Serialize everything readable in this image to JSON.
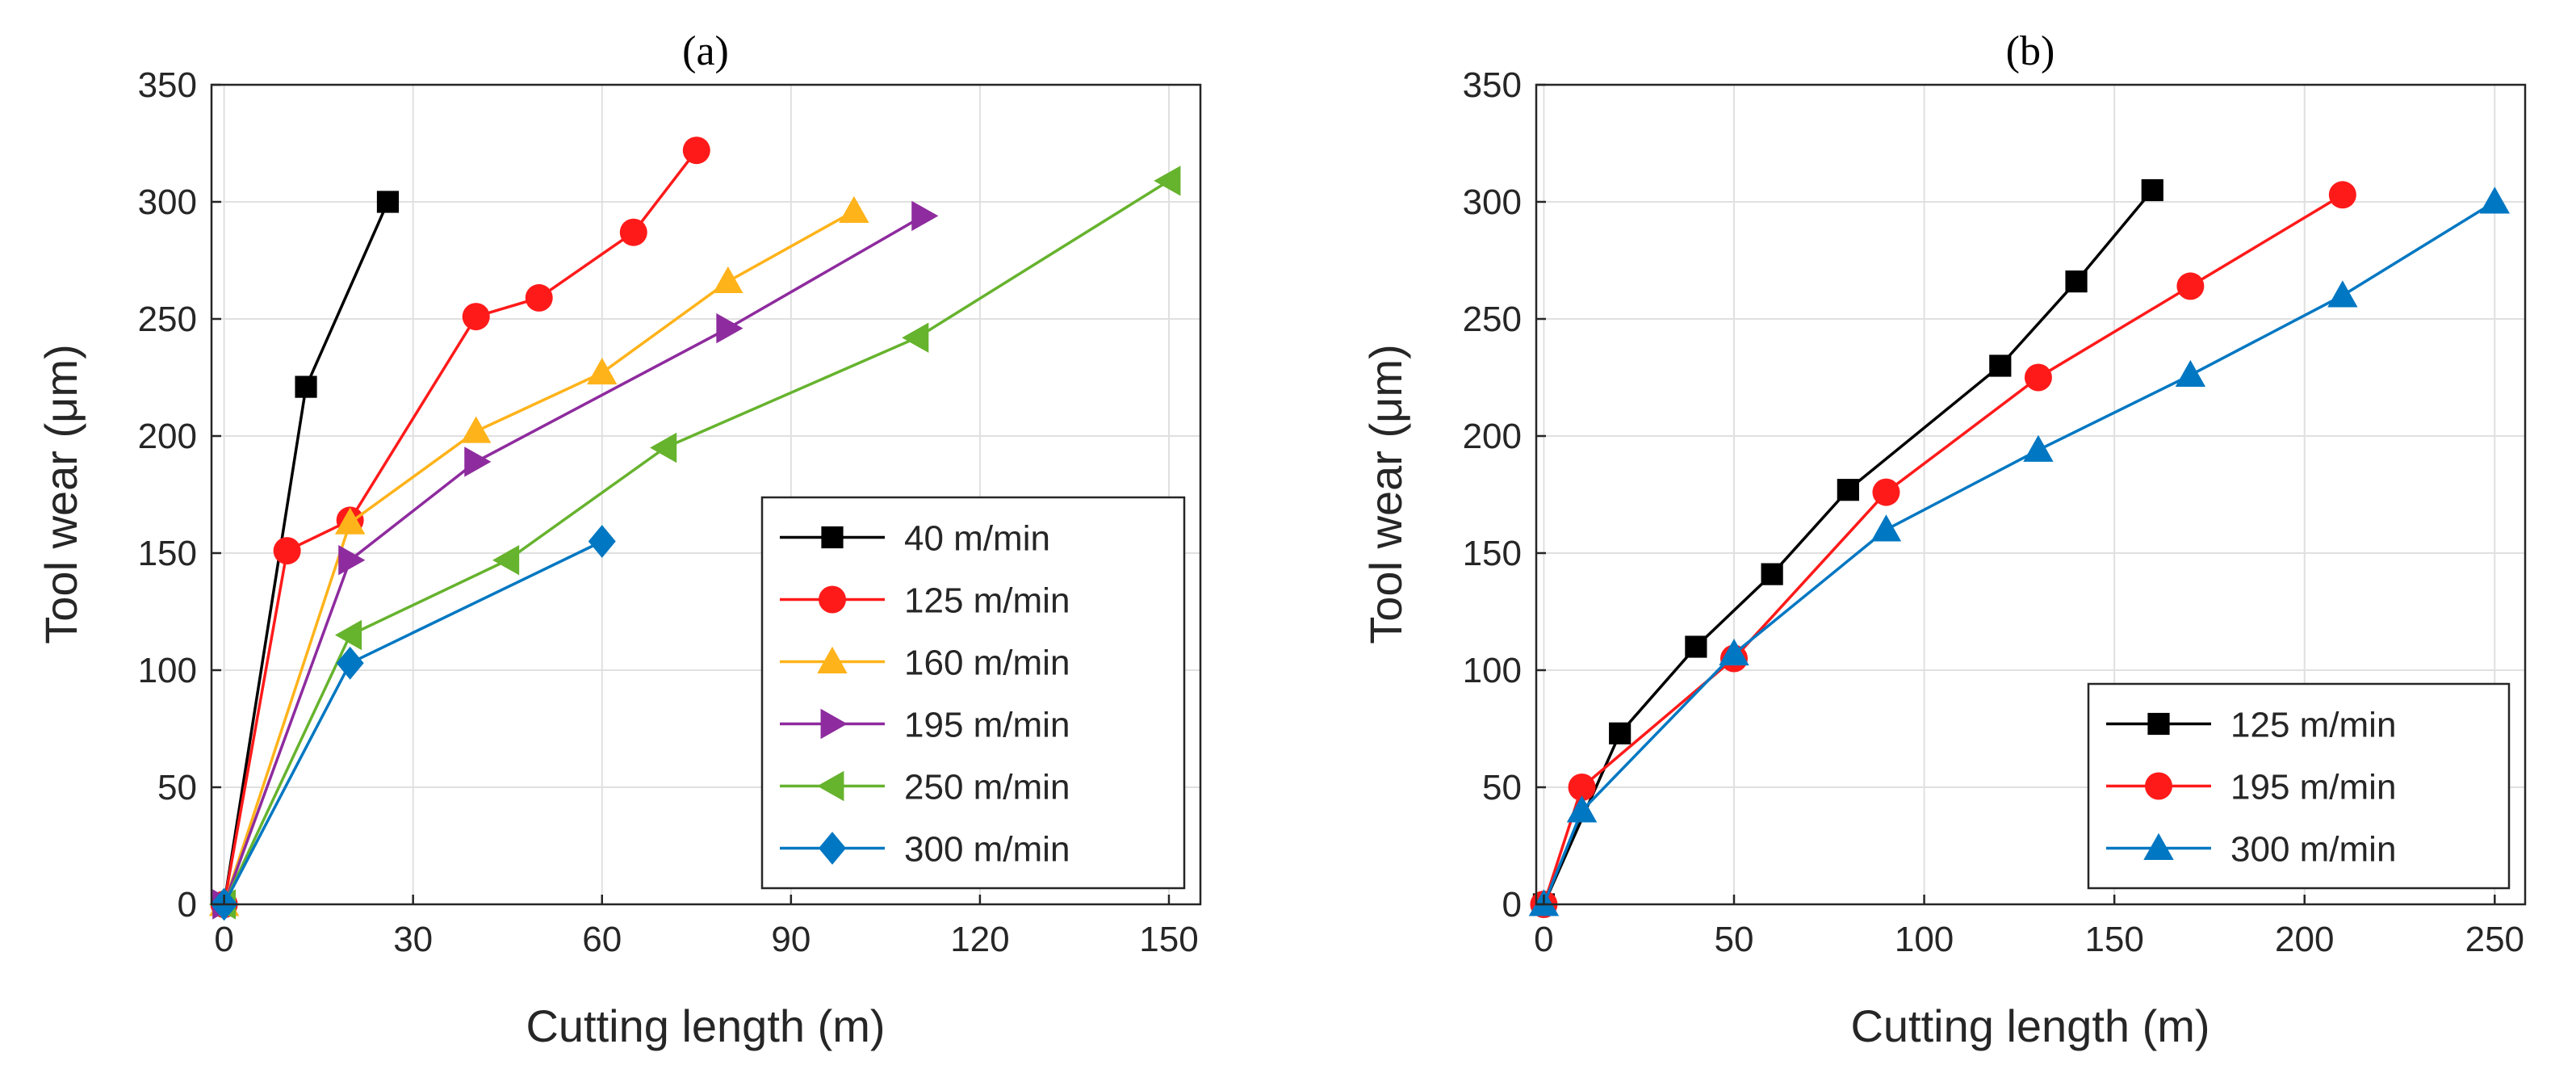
{
  "chart_data": [
    {
      "type": "line",
      "title": "(a)",
      "xlabel": "Cutting length (m)",
      "ylabel": "Tool wear (μm)",
      "xlim": [
        -2,
        155
      ],
      "ylim": [
        0,
        350
      ],
      "xticks": [
        0,
        30,
        60,
        90,
        120,
        150
      ],
      "yticks": [
        0,
        50,
        100,
        150,
        200,
        250,
        300,
        350
      ],
      "grid": true,
      "legend_position": "bottom-right",
      "series": [
        {
          "name": "40 m/min",
          "color": "#000000",
          "marker": "square",
          "x": [
            0,
            13,
            26
          ],
          "y": [
            0,
            221,
            300
          ]
        },
        {
          "name": "125 m/min",
          "color": "#ff1a1a",
          "marker": "circle",
          "x": [
            0,
            10,
            20,
            40,
            50,
            65,
            75
          ],
          "y": [
            0,
            151,
            164,
            251,
            259,
            287,
            322
          ]
        },
        {
          "name": "160 m/min",
          "color": "#ffb31a",
          "marker": "triangle-up",
          "x": [
            0,
            20,
            40,
            60,
            80,
            100
          ],
          "y": [
            0,
            163,
            202,
            227,
            266,
            296
          ]
        },
        {
          "name": "195 m/min",
          "color": "#8e2b9e",
          "marker": "triangle-right",
          "x": [
            0,
            20,
            40,
            80,
            111
          ],
          "y": [
            0,
            147,
            189,
            246,
            294
          ]
        },
        {
          "name": "250 m/min",
          "color": "#66b32e",
          "marker": "triangle-left",
          "x": [
            0,
            20,
            45,
            70,
            110,
            150
          ],
          "y": [
            0,
            115,
            147,
            195,
            242,
            309
          ]
        },
        {
          "name": "300 m/min",
          "color": "#0077c2",
          "marker": "diamond",
          "x": [
            0,
            20,
            60
          ],
          "y": [
            0,
            103,
            155
          ]
        }
      ]
    },
    {
      "type": "line",
      "title": "(b)",
      "xlabel": "Cutting length (m)",
      "ylabel": "Tool wear (μm)",
      "xlim": [
        -2,
        258
      ],
      "ylim": [
        0,
        350
      ],
      "xticks": [
        0,
        50,
        100,
        150,
        200,
        250
      ],
      "yticks": [
        0,
        50,
        100,
        150,
        200,
        250,
        300,
        350
      ],
      "grid": true,
      "legend_position": "bottom-right",
      "series": [
        {
          "name": "125 m/min",
          "color": "#000000",
          "marker": "square",
          "x": [
            0,
            20,
            40,
            60,
            80,
            120,
            140,
            160
          ],
          "y": [
            0,
            73,
            110,
            141,
            177,
            230,
            266,
            305
          ]
        },
        {
          "name": "195 m/min",
          "color": "#ff1a1a",
          "marker": "circle",
          "x": [
            0,
            10,
            50,
            90,
            130,
            170,
            210
          ],
          "y": [
            0,
            50,
            105,
            176,
            225,
            264,
            303
          ]
        },
        {
          "name": "300 m/min",
          "color": "#0077c2",
          "marker": "triangle-up",
          "x": [
            0,
            10,
            50,
            90,
            130,
            170,
            210,
            250
          ],
          "y": [
            0,
            40,
            107,
            160,
            194,
            226,
            260,
            300
          ]
        }
      ]
    }
  ]
}
